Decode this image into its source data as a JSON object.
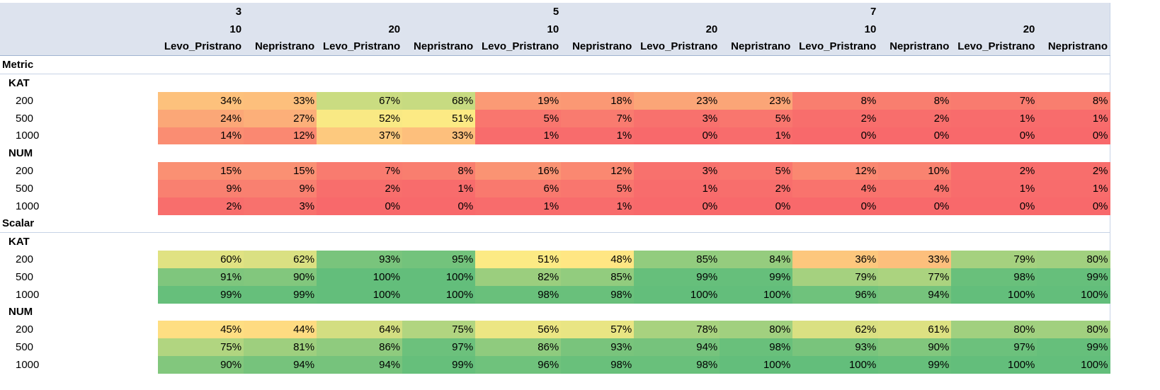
{
  "header": {
    "level1": [
      "3",
      "5",
      "7"
    ],
    "level2": [
      "10",
      "20",
      "10",
      "20",
      "10",
      "20"
    ],
    "level3": [
      "Levo_Pristrano",
      "Nepristrano",
      "Levo_Pristrano",
      "Nepristrano",
      "Levo_Pristrano",
      "Nepristrano",
      "Levo_Pristrano",
      "Nepristrano",
      "Levo_Pristrano",
      "Nepristrano",
      "Levo_Pristrano",
      "Nepristrano"
    ]
  },
  "color_scale": {
    "min": 0,
    "mid": 50,
    "max": 100,
    "colors": [
      "#f8696b",
      "#ffeb84",
      "#63be7b"
    ]
  },
  "sections": [
    {
      "label": "Metric",
      "groups": [
        {
          "label": "KAT",
          "rows": [
            {
              "label": "200",
              "cells": [
                "34%",
                "33%",
                "67%",
                "68%",
                "19%",
                "18%",
                "23%",
                "23%",
                "8%",
                "8%",
                "7%",
                "8%"
              ]
            },
            {
              "label": "500",
              "cells": [
                "24%",
                "27%",
                "52%",
                "51%",
                "5%",
                "7%",
                "3%",
                "5%",
                "2%",
                "2%",
                "1%",
                "1%"
              ]
            },
            {
              "label": "1000",
              "cells": [
                "14%",
                "12%",
                "37%",
                "33%",
                "1%",
                "1%",
                "0%",
                "1%",
                "0%",
                "0%",
                "0%",
                "0%"
              ]
            }
          ]
        },
        {
          "label": "NUM",
          "rows": [
            {
              "label": "200",
              "cells": [
                "15%",
                "15%",
                "7%",
                "8%",
                "16%",
                "12%",
                "3%",
                "5%",
                "12%",
                "10%",
                "2%",
                "2%"
              ]
            },
            {
              "label": "500",
              "cells": [
                "9%",
                "9%",
                "2%",
                "1%",
                "6%",
                "5%",
                "1%",
                "2%",
                "4%",
                "4%",
                "1%",
                "1%"
              ]
            },
            {
              "label": "1000",
              "cells": [
                "2%",
                "3%",
                "0%",
                "0%",
                "1%",
                "1%",
                "0%",
                "0%",
                "0%",
                "0%",
                "0%",
                "0%"
              ]
            }
          ]
        }
      ]
    },
    {
      "label": "Scalar",
      "groups": [
        {
          "label": "KAT",
          "rows": [
            {
              "label": "200",
              "cells": [
                "60%",
                "62%",
                "93%",
                "95%",
                "51%",
                "48%",
                "85%",
                "84%",
                "36%",
                "33%",
                "79%",
                "80%"
              ]
            },
            {
              "label": "500",
              "cells": [
                "91%",
                "90%",
                "100%",
                "100%",
                "82%",
                "85%",
                "99%",
                "99%",
                "79%",
                "77%",
                "98%",
                "99%"
              ]
            },
            {
              "label": "1000",
              "cells": [
                "99%",
                "99%",
                "100%",
                "100%",
                "98%",
                "98%",
                "100%",
                "100%",
                "96%",
                "94%",
                "100%",
                "100%"
              ]
            }
          ]
        },
        {
          "label": "NUM",
          "rows": [
            {
              "label": "200",
              "cells": [
                "45%",
                "44%",
                "64%",
                "75%",
                "56%",
                "57%",
                "78%",
                "80%",
                "62%",
                "61%",
                "80%",
                "80%"
              ]
            },
            {
              "label": "500",
              "cells": [
                "75%",
                "81%",
                "86%",
                "97%",
                "86%",
                "93%",
                "94%",
                "98%",
                "93%",
                "90%",
                "97%",
                "99%"
              ]
            },
            {
              "label": "1000",
              "cells": [
                "90%",
                "94%",
                "94%",
                "99%",
                "96%",
                "98%",
                "98%",
                "100%",
                "100%",
                "99%",
                "100%",
                "100%"
              ]
            }
          ]
        }
      ]
    }
  ]
}
